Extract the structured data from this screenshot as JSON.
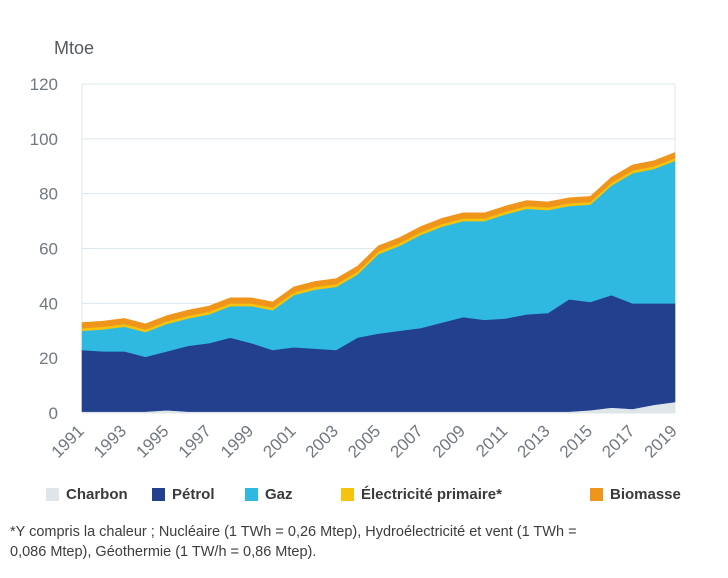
{
  "chart_data": {
    "type": "area",
    "stacked": true,
    "ylabel": "Mtoe",
    "ylim": [
      0,
      120
    ],
    "yticks": [
      0,
      20,
      40,
      60,
      80,
      100,
      120
    ],
    "grid": true,
    "legend_position": "bottom",
    "x": [
      1991,
      1992,
      1993,
      1994,
      1995,
      1996,
      1997,
      1998,
      1999,
      2000,
      2001,
      2002,
      2003,
      2004,
      2005,
      2006,
      2007,
      2008,
      2009,
      2010,
      2011,
      2012,
      2013,
      2014,
      2015,
      2016,
      2017,
      2018,
      2019
    ],
    "xtick_labels": [
      "1991",
      "1993",
      "1995",
      "1997",
      "1999",
      "2001",
      "2003",
      "2005",
      "2007",
      "2009",
      "2011",
      "2013",
      "2015",
      "2017",
      "2019"
    ],
    "series": [
      {
        "name": "Charbon",
        "color": "#dfe6ea",
        "values": [
          0.5,
          0.5,
          0.5,
          0.5,
          1.0,
          0.5,
          0.5,
          0.5,
          0.5,
          0.5,
          0.5,
          0.5,
          0.5,
          0.5,
          0.5,
          0.5,
          0.5,
          0.5,
          0.5,
          0.5,
          0.5,
          0.5,
          0.5,
          0.5,
          1.0,
          2.0,
          1.5,
          3.0,
          4.0
        ]
      },
      {
        "name": "Pétrol",
        "color": "#23408f",
        "values": [
          22.5,
          22.0,
          22.0,
          20.0,
          21.5,
          24.0,
          25.0,
          27.0,
          25.0,
          22.5,
          23.5,
          23.0,
          22.5,
          27.0,
          28.5,
          29.5,
          30.5,
          32.5,
          34.5,
          33.5,
          34.0,
          35.5,
          36.0,
          41.0,
          39.5,
          41.0,
          38.5,
          37.0,
          36.0
        ]
      },
      {
        "name": "Gaz",
        "color": "#30b9e0",
        "values": [
          7.0,
          8.0,
          9.0,
          9.0,
          10.0,
          10.0,
          10.5,
          11.5,
          13.5,
          14.5,
          19.0,
          21.5,
          23.0,
          23.0,
          29.0,
          31.0,
          34.0,
          35.0,
          35.0,
          36.0,
          38.0,
          38.5,
          37.5,
          34.0,
          35.5,
          40.0,
          47.5,
          49.0,
          52.0
        ]
      },
      {
        "name": "Électricité primaire*",
        "color": "#f5c30d",
        "values": [
          1.0,
          1.0,
          1.0,
          1.0,
          1.0,
          1.0,
          1.0,
          1.0,
          1.0,
          1.0,
          1.0,
          1.0,
          1.0,
          1.0,
          1.0,
          1.0,
          1.0,
          1.0,
          1.0,
          1.0,
          1.0,
          1.0,
          1.0,
          1.0,
          1.0,
          1.0,
          1.0,
          1.0,
          1.0
        ]
      },
      {
        "name": "Biomasse",
        "color": "#f0951c",
        "values": [
          2.0,
          2.0,
          2.0,
          2.0,
          2.0,
          2.0,
          2.0,
          2.0,
          2.0,
          2.0,
          2.0,
          2.0,
          2.0,
          2.0,
          2.0,
          2.0,
          2.0,
          2.0,
          2.0,
          2.0,
          2.0,
          2.0,
          2.0,
          2.0,
          2.0,
          2.0,
          2.0,
          2.0,
          2.0
        ]
      }
    ]
  },
  "footnote": {
    "line1": "*Y compris la chaleur ; Nucléaire (1 TWh = 0,26 Mtep), Hydroélectricité et vent (1 TWh =",
    "line2": "0,086 Mtep), Géothermie (1 TW/h = 0,86 Mtep)."
  }
}
